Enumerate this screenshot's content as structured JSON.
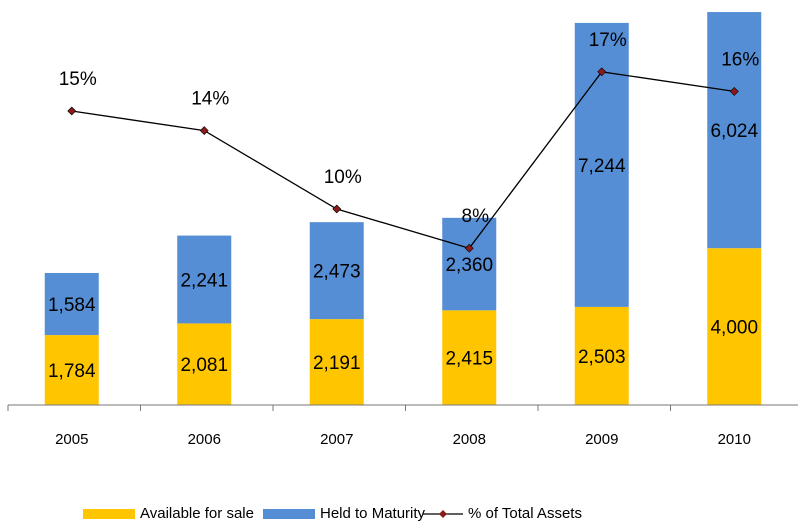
{
  "chart_data": {
    "type": "bar",
    "categories": [
      "2005",
      "2006",
      "2007",
      "2008",
      "2009",
      "2010"
    ],
    "stacked": true,
    "series": [
      {
        "name": "Available for sale",
        "color": "#ffc600",
        "values": [
          1784,
          2081,
          2191,
          2415,
          2503,
          4000
        ],
        "value_labels": [
          "1,784",
          "2,081",
          "2,191",
          "2,415",
          "2,503",
          "4,000"
        ]
      },
      {
        "name": "Held to Maturity",
        "color": "#558ed5",
        "values": [
          1584,
          2241,
          2473,
          2360,
          7244,
          6024
        ],
        "value_labels": [
          "1,584",
          "2,241",
          "2,473",
          "2,360",
          "7,244",
          "6,024"
        ]
      },
      {
        "name": "% of Total Assets",
        "type": "line",
        "axis": "y2",
        "color": "#000000",
        "marker_color": "#8b1a1a",
        "values": [
          15,
          14,
          10,
          8,
          17,
          16
        ],
        "value_labels": [
          "15%",
          "14%",
          "10%",
          "8%",
          "17%",
          "16%"
        ]
      }
    ],
    "ylim": [
      0,
      10000
    ],
    "y2lim": [
      0,
      20
    ],
    "legend": "bottom"
  }
}
